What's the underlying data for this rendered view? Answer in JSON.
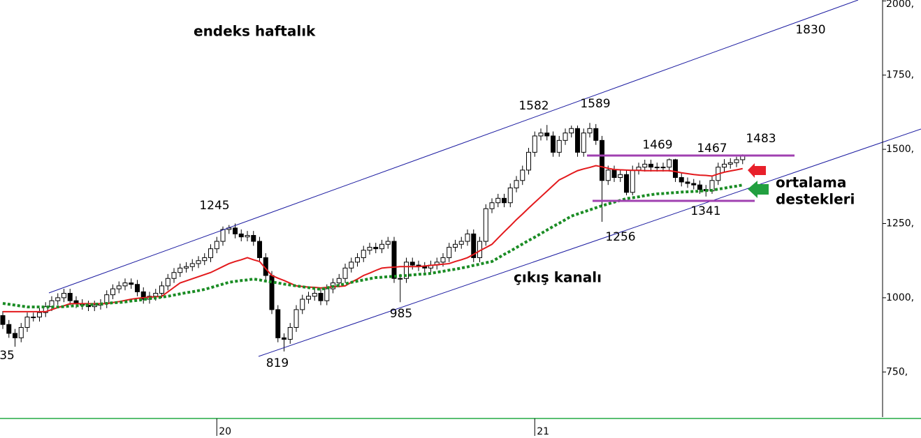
{
  "chart_data": {
    "type": "candlestick",
    "title": "endeks haftalık",
    "categories": [
      null,
      null,
      null,
      null,
      null,
      null,
      null,
      null,
      null,
      null,
      null,
      null,
      null,
      null,
      null,
      null,
      null,
      null,
      null,
      null,
      null,
      null,
      null,
      null,
      null,
      null,
      null,
      null,
      null,
      null,
      null,
      null,
      null,
      null,
      null,
      "20",
      null,
      null,
      null,
      null,
      null,
      null,
      null,
      null,
      null,
      null,
      null,
      null,
      null,
      null,
      null,
      null,
      null,
      null,
      null,
      null,
      null,
      null,
      null,
      null,
      null,
      null,
      null,
      null,
      null,
      null,
      null,
      null,
      null,
      null,
      null,
      null,
      null,
      null,
      null,
      null,
      null,
      null,
      null,
      null,
      null,
      null,
      null,
      null,
      null,
      null,
      null,
      "21",
      null,
      null,
      null,
      null,
      null,
      null,
      null,
      null,
      null,
      null,
      null,
      null,
      null,
      null,
      null,
      null,
      null,
      null,
      null,
      null,
      null,
      null,
      null,
      null,
      null,
      null,
      null,
      null,
      null,
      null,
      null,
      null,
      null,
      null
    ],
    "open": [
      940,
      910,
      880,
      865,
      900,
      935,
      935,
      950,
      970,
      990,
      1000,
      1015,
      990,
      980,
      975,
      970,
      975,
      980,
      1010,
      1030,
      1040,
      1050,
      1045,
      1020,
      995,
      1005,
      1015,
      1040,
      1065,
      1085,
      1100,
      1105,
      1115,
      1125,
      1135,
      1165,
      1190,
      1230,
      1235,
      1215,
      1205,
      1210,
      1190,
      1135,
      1075,
      960,
      865,
      860,
      900,
      960,
      995,
      1005,
      1015,
      990,
      1030,
      1050,
      1065,
      1100,
      1120,
      1135,
      1160,
      1170,
      1165,
      1180,
      1190,
      1065,
      1065,
      1120,
      1110,
      1105,
      1100,
      1110,
      1120,
      1135,
      1170,
      1180,
      1190,
      1215,
      1135,
      1190,
      1300,
      1320,
      1335,
      1320,
      1370,
      1395,
      1430,
      1490,
      1545,
      1555,
      1545,
      1490,
      1530,
      1555,
      1570,
      1490,
      1555,
      1570,
      1530,
      1395,
      1430,
      1405,
      1415,
      1355,
      1430,
      1440,
      1450,
      1440,
      1440,
      1440,
      1465,
      1405,
      1390,
      1385,
      1380,
      1365,
      1360,
      1395,
      1440,
      1450,
      1455,
      1465
    ],
    "high": [
      955,
      925,
      895,
      915,
      950,
      950,
      965,
      985,
      1005,
      1015,
      1030,
      1030,
      1005,
      995,
      990,
      990,
      995,
      1025,
      1045,
      1055,
      1065,
      1065,
      1060,
      1035,
      1020,
      1030,
      1055,
      1080,
      1100,
      1115,
      1120,
      1130,
      1140,
      1150,
      1180,
      1205,
      1240,
      1245,
      1250,
      1230,
      1225,
      1225,
      1205,
      1150,
      1090,
      975,
      880,
      915,
      975,
      1010,
      1020,
      1030,
      1030,
      1045,
      1065,
      1080,
      1115,
      1135,
      1150,
      1175,
      1185,
      1185,
      1195,
      1205,
      1205,
      1080,
      1135,
      1135,
      1125,
      1120,
      1125,
      1135,
      1150,
      1185,
      1195,
      1205,
      1230,
      1230,
      1205,
      1315,
      1335,
      1350,
      1350,
      1385,
      1410,
      1445,
      1505,
      1560,
      1570,
      1582,
      1560,
      1545,
      1570,
      1580,
      1580,
      1570,
      1589,
      1585,
      1545,
      1445,
      1445,
      1430,
      1430,
      1445,
      1455,
      1465,
      1465,
      1455,
      1455,
      1469,
      1468,
      1420,
      1405,
      1400,
      1395,
      1380,
      1410,
      1455,
      1467,
      1470,
      1475,
      1483
    ],
    "low": [
      895,
      865,
      835,
      850,
      885,
      920,
      920,
      935,
      955,
      975,
      985,
      975,
      965,
      960,
      955,
      955,
      960,
      965,
      995,
      1015,
      1025,
      1030,
      1005,
      980,
      980,
      990,
      1000,
      1025,
      1050,
      1070,
      1085,
      1090,
      1100,
      1110,
      1120,
      1150,
      1175,
      1215,
      1200,
      1190,
      1190,
      1175,
      1120,
      1060,
      945,
      850,
      819,
      845,
      885,
      945,
      980,
      990,
      975,
      975,
      1015,
      1035,
      1050,
      1085,
      1105,
      1120,
      1145,
      1150,
      1150,
      1165,
      1050,
      985,
      1050,
      1095,
      1090,
      1085,
      1085,
      1095,
      1105,
      1120,
      1155,
      1165,
      1175,
      1120,
      1120,
      1175,
      1285,
      1305,
      1305,
      1305,
      1355,
      1380,
      1415,
      1475,
      1530,
      1530,
      1475,
      1475,
      1515,
      1540,
      1475,
      1475,
      1540,
      1515,
      1256,
      1380,
      1390,
      1390,
      1345,
      1345,
      1415,
      1425,
      1425,
      1425,
      1425,
      1425,
      1390,
      1375,
      1370,
      1365,
      1350,
      1341,
      1350,
      1380,
      1425,
      1435,
      1440,
      1450
    ],
    "close": [
      910,
      880,
      865,
      900,
      935,
      935,
      950,
      970,
      990,
      1000,
      1015,
      990,
      980,
      975,
      970,
      975,
      980,
      1010,
      1030,
      1040,
      1050,
      1045,
      1020,
      995,
      1005,
      1015,
      1040,
      1065,
      1085,
      1100,
      1105,
      1115,
      1125,
      1135,
      1165,
      1190,
      1230,
      1235,
      1215,
      1205,
      1210,
      1190,
      1135,
      1075,
      960,
      865,
      860,
      900,
      960,
      995,
      1005,
      1015,
      990,
      1030,
      1050,
      1065,
      1100,
      1120,
      1135,
      1160,
      1170,
      1165,
      1180,
      1190,
      1065,
      1065,
      1120,
      1110,
      1105,
      1100,
      1110,
      1120,
      1135,
      1170,
      1180,
      1190,
      1215,
      1135,
      1190,
      1300,
      1320,
      1335,
      1320,
      1370,
      1395,
      1430,
      1490,
      1545,
      1555,
      1545,
      1490,
      1530,
      1555,
      1570,
      1490,
      1555,
      1570,
      1530,
      1395,
      1430,
      1405,
      1415,
      1355,
      1430,
      1440,
      1450,
      1440,
      1440,
      1440,
      1465,
      1405,
      1390,
      1385,
      1380,
      1365,
      1360,
      1395,
      1440,
      1450,
      1455,
      1465,
      1480
    ],
    "up_color": "#ffffff",
    "down_color": "#000000",
    "lines": [
      {
        "color": "#e3191c",
        "style": "solid",
        "values": [
          953,
          953,
          953,
          953,
          953,
          953,
          953,
          953,
          960,
          967,
          973,
          980,
          980,
          980,
          980,
          980,
          980,
          980,
          984,
          987,
          991,
          995,
          998,
          1000,
          1002,
          1003,
          1005,
          1020,
          1035,
          1050,
          1057,
          1064,
          1071,
          1078,
          1085,
          1095,
          1105,
          1115,
          1122,
          1128,
          1135,
          1128,
          1122,
          1098,
          1075,
          1066,
          1058,
          1049,
          1040,
          1038,
          1036,
          1035,
          1033,
          1035,
          1037,
          1038,
          1040,
          1052,
          1063,
          1075,
          1083,
          1092,
          1100,
          1102,
          1103,
          1105,
          1105,
          1105,
          1105,
          1107,
          1109,
          1111,
          1113,
          1115,
          1122,
          1128,
          1135,
          1146,
          1158,
          1169,
          1180,
          1201,
          1222,
          1242,
          1263,
          1282,
          1302,
          1321,
          1340,
          1359,
          1378,
          1397,
          1407,
          1418,
          1428,
          1434,
          1439,
          1445,
          1441,
          1436,
          1432,
          1431,
          1430,
          1429,
          1429,
          1428,
          1428,
          1428,
          1428,
          1428,
          1425,
          1421,
          1418,
          1415,
          1413,
          1412,
          1410,
          1417,
          1423,
          1427,
          1431,
          1435
        ]
      },
      {
        "color": "#1a8c24",
        "style": "dotted",
        "values": [
          981,
          978,
          975,
          972,
          969,
          969,
          969,
          969,
          969,
          969,
          970,
          972,
          973,
          974,
          976,
          978,
          979,
          981,
          983,
          984,
          986,
          989,
          991,
          994,
          997,
          999,
          1002,
          1005,
          1009,
          1013,
          1017,
          1020,
          1024,
          1028,
          1034,
          1040,
          1046,
          1052,
          1055,
          1058,
          1060,
          1063,
          1060,
          1056,
          1053,
          1050,
          1046,
          1043,
          1040,
          1037,
          1034,
          1031,
          1028,
          1033,
          1038,
          1042,
          1047,
          1052,
          1056,
          1060,
          1064,
          1068,
          1069,
          1071,
          1072,
          1074,
          1075,
          1077,
          1079,
          1080,
          1082,
          1086,
          1089,
          1093,
          1096,
          1100,
          1104,
          1109,
          1113,
          1118,
          1122,
          1134,
          1146,
          1157,
          1169,
          1181,
          1193,
          1204,
          1216,
          1228,
          1240,
          1251,
          1263,
          1275,
          1282,
          1289,
          1296,
          1303,
          1310,
          1316,
          1322,
          1328,
          1334,
          1337,
          1340,
          1344,
          1347,
          1350,
          1351,
          1353,
          1354,
          1356,
          1357,
          1358,
          1359,
          1361,
          1362,
          1366,
          1369,
          1373,
          1376,
          1380
        ]
      }
    ],
    "ylim": [
      598,
      2003
    ],
    "yticks": [
      {
        "value": 750,
        "label": "750,"
      },
      {
        "value": 1000,
        "label": "1000,"
      },
      {
        "value": 1250,
        "label": "1250,"
      },
      {
        "value": 1500,
        "label": "1500,"
      },
      {
        "value": 1750,
        "label": "1750,"
      },
      {
        "value": 2000,
        "label": "2000,"
      }
    ],
    "annotations": [
      "1830",
      "1582",
      "1589",
      "1469",
      "1467",
      "1483",
      "1245",
      "ortalama",
      "destekleri",
      "1341",
      "1256",
      "çıkış kanalı",
      "985",
      "819",
      "35"
    ]
  }
}
